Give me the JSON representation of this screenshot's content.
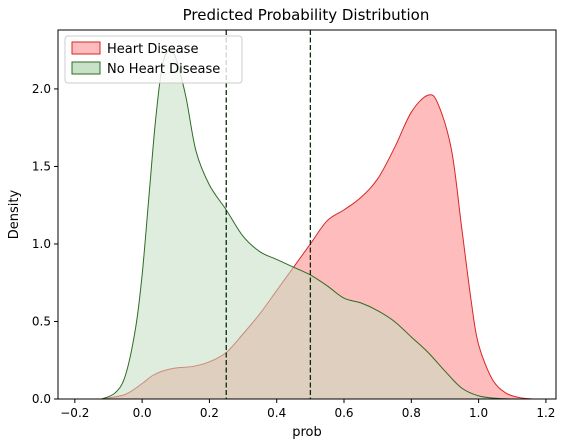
{
  "chart_data": {
    "type": "area",
    "title": "Predicted Probability Distribution",
    "xlabel": "prob",
    "ylabel": "Density",
    "xlim": [
      -0.25,
      1.23
    ],
    "ylim": [
      0,
      2.38
    ],
    "xticks": [
      -0.2,
      0.0,
      0.2,
      0.4,
      0.6,
      0.8,
      1.0,
      1.2
    ],
    "xtick_labels": [
      "−0.2",
      "0.0",
      "0.2",
      "0.4",
      "0.6",
      "0.8",
      "1.0",
      "1.2"
    ],
    "yticks": [
      0.0,
      0.5,
      1.0,
      1.5,
      2.0
    ],
    "ytick_labels": [
      "0.0",
      "0.5",
      "1.0",
      "1.5",
      "2.0"
    ],
    "grid": false,
    "legend_position": "top-left",
    "vlines": [
      0.25,
      0.5
    ],
    "series": [
      {
        "name": "Heart Disease",
        "fill": "#ffbcbc",
        "stroke": "#d62728",
        "x": [
          -0.12,
          -0.05,
          0.0,
          0.03,
          0.06,
          0.1,
          0.15,
          0.2,
          0.25,
          0.3,
          0.35,
          0.4,
          0.45,
          0.5,
          0.55,
          0.6,
          0.65,
          0.7,
          0.75,
          0.8,
          0.85,
          0.88,
          0.92,
          0.95,
          0.98,
          1.0,
          1.04,
          1.08,
          1.12,
          1.16
        ],
        "values": [
          0.0,
          0.03,
          0.1,
          0.15,
          0.18,
          0.2,
          0.21,
          0.24,
          0.3,
          0.42,
          0.55,
          0.7,
          0.85,
          1.0,
          1.15,
          1.22,
          1.3,
          1.42,
          1.62,
          1.85,
          1.96,
          1.9,
          1.6,
          1.1,
          0.6,
          0.35,
          0.13,
          0.04,
          0.01,
          0.0
        ]
      },
      {
        "name": "No Heart Disease",
        "fill": "#c2dfc1",
        "stroke": "#2e6b25",
        "x": [
          -0.12,
          -0.08,
          -0.05,
          -0.02,
          0.0,
          0.02,
          0.04,
          0.06,
          0.08,
          0.1,
          0.13,
          0.16,
          0.2,
          0.25,
          0.3,
          0.35,
          0.4,
          0.45,
          0.5,
          0.55,
          0.6,
          0.65,
          0.7,
          0.75,
          0.8,
          0.85,
          0.9,
          0.95,
          1.0,
          1.05,
          1.1
        ],
        "values": [
          0.0,
          0.04,
          0.15,
          0.45,
          0.8,
          1.3,
          1.8,
          2.15,
          2.25,
          2.2,
          1.95,
          1.6,
          1.38,
          1.22,
          1.05,
          0.95,
          0.9,
          0.85,
          0.8,
          0.73,
          0.65,
          0.62,
          0.57,
          0.5,
          0.4,
          0.3,
          0.18,
          0.07,
          0.02,
          0.005,
          0.0
        ]
      }
    ]
  }
}
